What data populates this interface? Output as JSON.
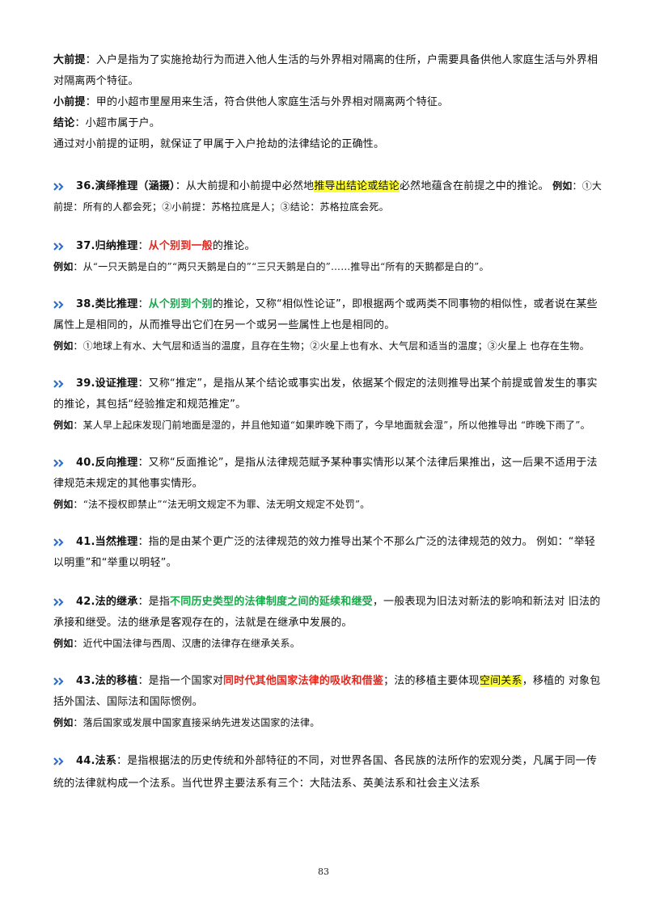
{
  "p_major": {
    "label": "大前提",
    "text": "：入户是指为了实施抢劫行为而进入他人生活的与外界相对隔离的住所，户需要具备供他人家庭生活与外界相对隔离两个特征。"
  },
  "p_minor": {
    "label": "小前提",
    "text": "：甲的小超市里屋用来生活，符合供他人家庭生活与外界相对隔离两个特征。"
  },
  "p_conc": {
    "label": "结论",
    "text": "：小超市属于户。"
  },
  "p_tail": "通过对小前提的证明，就保证了甲属于入户抢劫的法律结论的正确性。",
  "s36": {
    "title": "36.演绎推理（涵摄）",
    "t1": "：从大前提和小前提中必然地",
    "hl": "推导出结论或结论",
    "t2": "必然地蕴含在前提之中的推论。",
    "ex_label": "例如",
    "ex": "：①大前提：所有的人都会死；②小前提：苏格拉底是人；③结论：苏格拉底会死。"
  },
  "s37": {
    "title": "37.归纳推理",
    "t1": "：",
    "em": "从个别到一般",
    "t2": "的推论。",
    "ex_label": "例如",
    "ex": "：从“一只天鹅是白的”“两只天鹅是白的”“三只天鹅是白的”……推导出“所有的天鹅都是白的”。"
  },
  "s38": {
    "title": "38.类比推理",
    "t1": "：",
    "em": "从个别到个别",
    "t2": "的推论，又称“相似性论证”，即根据两个或两类不同事物的相似性，或者说在某些属性上是相同的，从而推导出它们在另一个或另一些属性上也是相同的。",
    "ex_label": "例如",
    "ex": "：①地球上有水、大气层和适当的温度，且存在生物；②火星上也有水、大气层和适当的温度；③火星上 也存在生物。"
  },
  "s39": {
    "title": "39.设证推理",
    "t1": "：又称“推定”，是指从某个结论或事实出发，依据某个假定的法则推导出某个前提或曾发生的事实的推论，其包括“经验推定和规范推定”。",
    "ex_label": "例如",
    "ex": "：某人早上起床发现门前地面是湿的，并且他知道“如果昨晚下雨了，今早地面就会湿”，所以他推导出 “昨晚下雨了”。"
  },
  "s40": {
    "title": "40.反向推理",
    "t1": "：又称“反面推论”，是指从法律规范赋予某种事实情形以某个法律后果推出，这一后果不适用于法律规范未规定的其他事实情形。",
    "ex_label": "例如",
    "ex": "：“法不授权即禁止”“法无明文规定不为罪、法无明文规定不处罚”。"
  },
  "s41": {
    "title": "41.当然推理",
    "t1": "：指的是由某个更广泛的法律规范的效力推导出某个不那么广泛的法律规范的效力。 例如：“举轻以明重”和“举重以明轻”。"
  },
  "s42": {
    "title": "42.法的继承",
    "t1": "：是指",
    "em": "不同历史类型的法律制度之间的延续和继受",
    "t2": "，一般表现为旧法对新法的影响和新法对 旧法的承接和继受。法的继承是客观存在的，法就是在继承中发展的。",
    "ex_label": "例如",
    "ex": "：近代中国法律与西周、汉唐的法律存在继承关系。"
  },
  "s43": {
    "title": "43.法的移植",
    "t1": "：是指一个国家对",
    "em": "同时代其他国家法律的吸收和借鉴",
    "t2": "；法的移植主要体现",
    "hl": "空间关系",
    "t3": "，移植的 对象包括外国法、国际法和国际惯例。",
    "ex_label": "例如",
    "ex": "：落后国家或发展中国家直接采纳先进发达国家的法律。"
  },
  "s44": {
    "title": "44.法系",
    "t1": "：是指根据法的历史传统和外部特征的不同，对世界各国、各民族的法所作的宏观分类，凡属于同一传统的法律就构成一个法系。当代世界主要法系有三个：大陆法系、英美法系和社会主义法系"
  },
  "page_number": "83",
  "colors": {
    "marker": "#2f6fd0",
    "highlight": "#ffff30",
    "red": "#e8251c",
    "green": "#18a84a"
  }
}
